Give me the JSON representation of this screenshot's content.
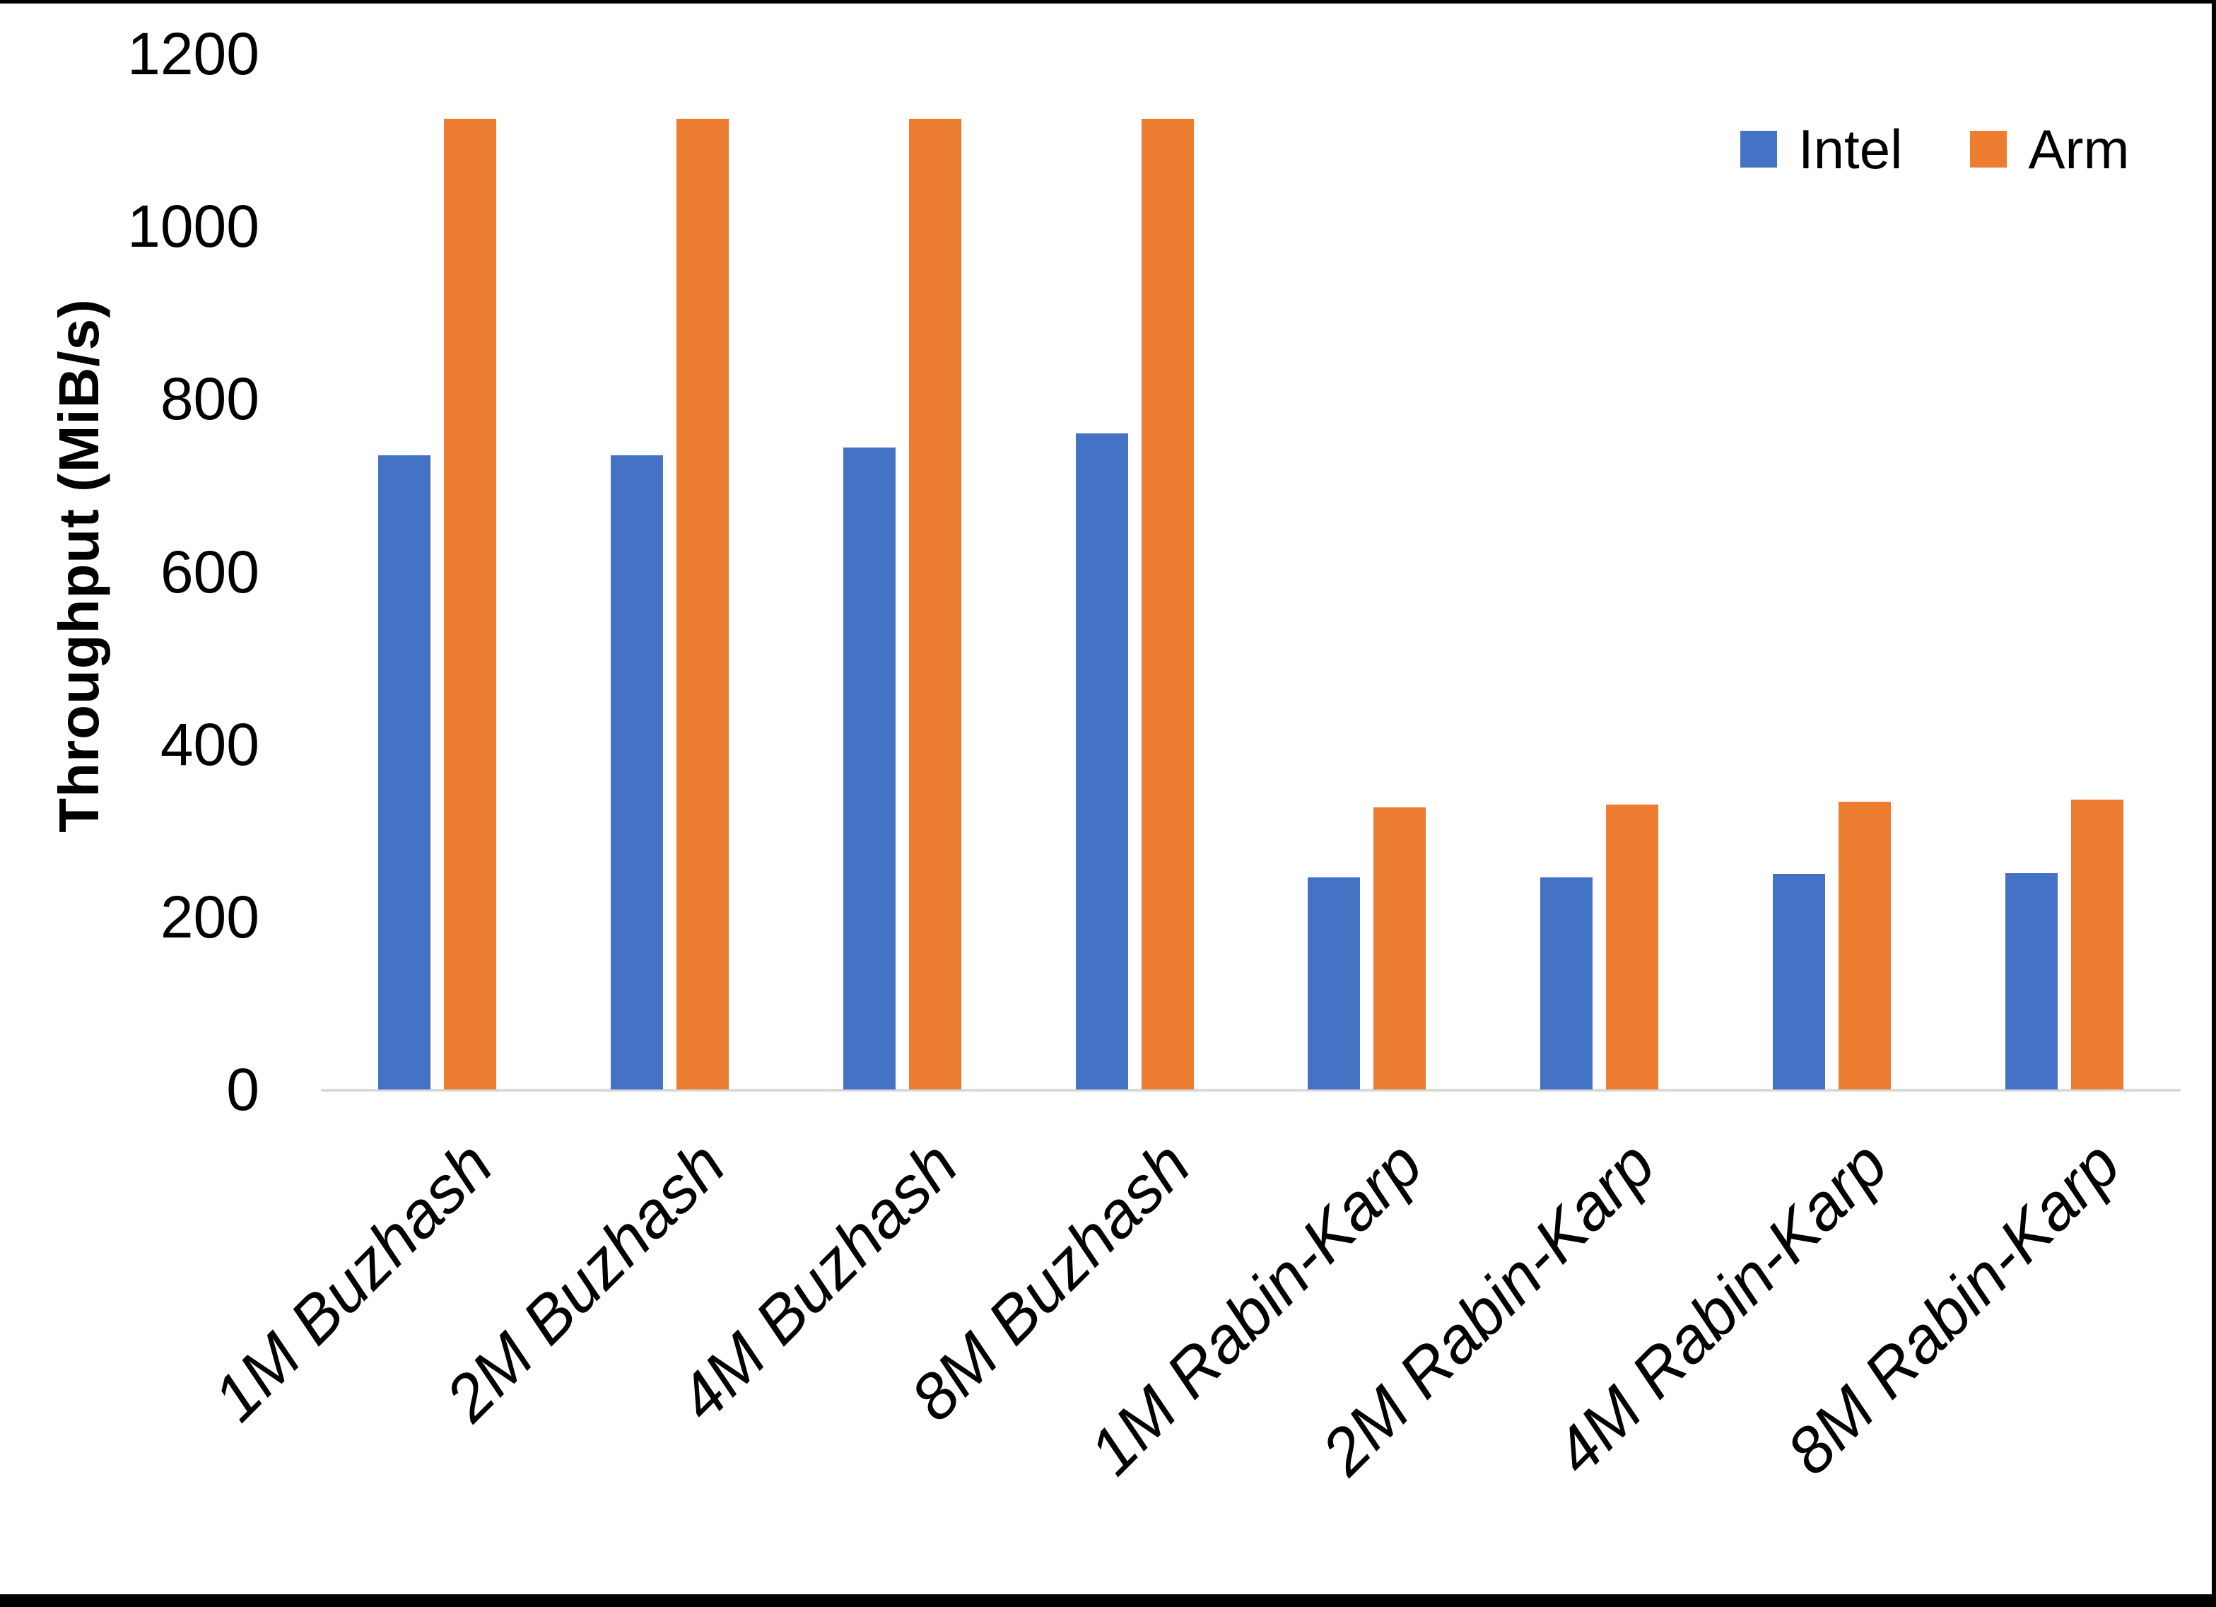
{
  "chart_data": {
    "type": "bar",
    "title": "",
    "xlabel": "",
    "ylabel": "Throughput (MiB/s)",
    "categories": [
      "1M Buzhash",
      "2M Buzhash",
      "4M Buzhash",
      "8M Buzhash",
      "1M Rabin-Karp",
      "2M Rabin-Karp",
      "4M Rabin-Karp",
      "8M Rabin-Karp"
    ],
    "series": [
      {
        "name": "Intel",
        "color": "#4472C4",
        "values": [
          735,
          735,
          744,
          760,
          246,
          246,
          250,
          251
        ]
      },
      {
        "name": "Arm",
        "color": "#ED7D31",
        "values": [
          1125,
          1125,
          1125,
          1125,
          327,
          330,
          333,
          336
        ]
      }
    ],
    "ylim": [
      0,
      1200
    ],
    "yticks": [
      0,
      200,
      400,
      600,
      800,
      1000,
      1200
    ],
    "grid": false,
    "legend_position": "top-right",
    "axis_line_color": "#d9d9d9",
    "text_color": "#000000"
  },
  "legend": {
    "intel_label": "Intel",
    "arm_label": "Arm"
  }
}
